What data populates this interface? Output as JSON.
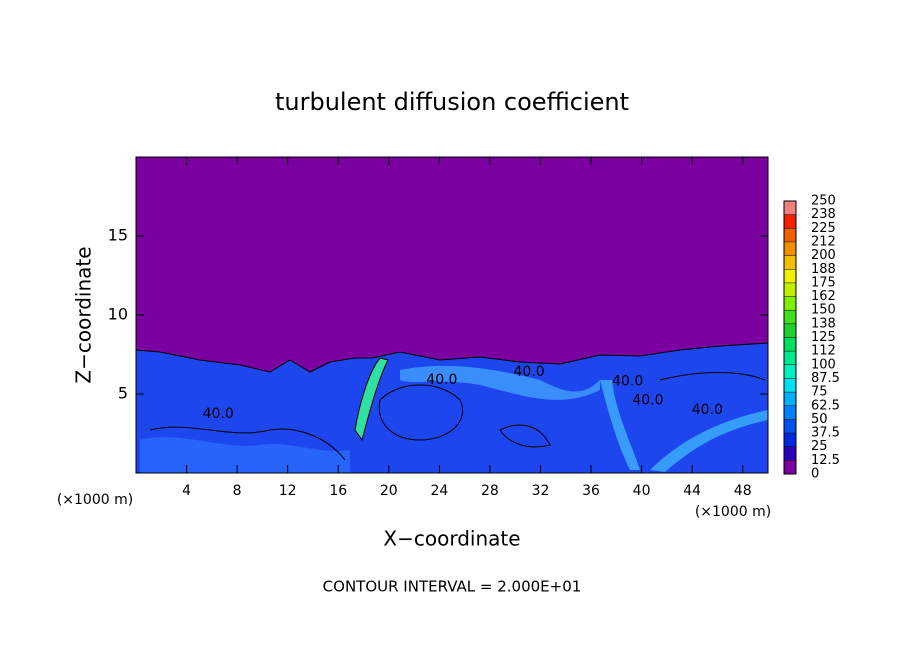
{
  "chart_data": {
    "type": "contour",
    "title": "turbulent diffusion coefficient",
    "xlabel": "X−coordinate",
    "ylabel": "Z−coordinate",
    "x_unit_left": "(×1000 m)",
    "x_unit_right": "(×1000 m)",
    "annotation": "CONTOUR INTERVAL = 2.000E+01",
    "xlim": [
      0,
      50
    ],
    "ylim": [
      0,
      20
    ],
    "xticks": [
      4,
      8,
      12,
      16,
      20,
      24,
      28,
      32,
      36,
      40,
      44,
      48
    ],
    "yticks": [
      5,
      10,
      15
    ],
    "contour_labels": [
      {
        "text": "40.0",
        "x": 6.5,
        "y": 3.75
      },
      {
        "text": "40.0",
        "x": 24.2,
        "y": 5.9
      },
      {
        "text": "40.0",
        "x": 31.1,
        "y": 6.4
      },
      {
        "text": "40.0",
        "x": 38.9,
        "y": 5.8
      },
      {
        "text": "40.0",
        "x": 40.5,
        "y": 4.6
      },
      {
        "text": "40.0",
        "x": 45.2,
        "y": 4.0
      }
    ],
    "colorbar": {
      "lim": [
        0,
        250
      ],
      "ticks": [
        0,
        12.5,
        25,
        37.5,
        50,
        62.5,
        75,
        87.5,
        100,
        {
          "value": 112.5,
          "label": "112"
        },
        125,
        {
          "value": 137.5,
          "label": "138"
        },
        150,
        {
          "value": 162.5,
          "label": "162"
        },
        175,
        {
          "value": 187.5,
          "label": "188"
        },
        200,
        {
          "value": 212.5,
          "label": "212"
        },
        225,
        {
          "value": 237.5,
          "label": "238"
        },
        250
      ],
      "colors": [
        "#7a00a0",
        "#2a00b8",
        "#0028e0",
        "#0050f0",
        "#0080ff",
        "#00b0ff",
        "#00e0f0",
        "#00f0c0",
        "#00e890",
        "#00e060",
        "#20d030",
        "#40e020",
        "#80f000",
        "#c0f000",
        "#f0f000",
        "#f0c000",
        "#f09000",
        "#f06000",
        "#f02000",
        "#f08080"
      ]
    }
  }
}
